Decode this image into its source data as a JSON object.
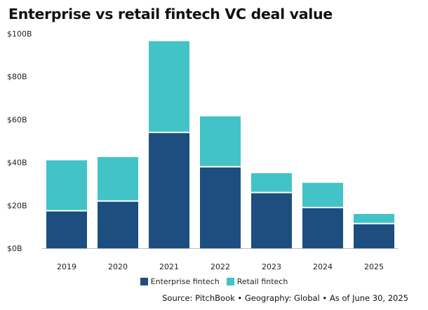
{
  "title": "Enterprise vs retail fintech VC deal value",
  "source": "Source: PitchBook • Geography: Global • As of June 30, 2025",
  "colors": {
    "enterprise": "#1d4e7f",
    "retail": "#42c3c8"
  },
  "chart_data": {
    "type": "bar",
    "stacked": true,
    "title": "Enterprise vs retail fintech VC deal value",
    "categories": [
      "2019",
      "2020",
      "2021",
      "2022",
      "2023",
      "2024",
      "2025"
    ],
    "series": [
      {
        "name": "Enterprise fintech",
        "values": [
          17.5,
          22,
          54,
          38,
          26,
          19,
          11.5
        ]
      },
      {
        "name": "Retail fintech",
        "values": [
          23.5,
          20.5,
          42.5,
          23.5,
          9,
          11.5,
          4.5
        ]
      }
    ],
    "ylim": [
      0,
      100
    ],
    "yticks": [
      {
        "value": 0,
        "label": "$0B"
      },
      {
        "value": 20,
        "label": "$20B"
      },
      {
        "value": 40,
        "label": "$40B"
      },
      {
        "value": 60,
        "label": "$60B"
      },
      {
        "value": 80,
        "label": "$80B"
      },
      {
        "value": 100,
        "label": "$100B"
      }
    ],
    "legend_position": "bottom",
    "grid": false
  }
}
